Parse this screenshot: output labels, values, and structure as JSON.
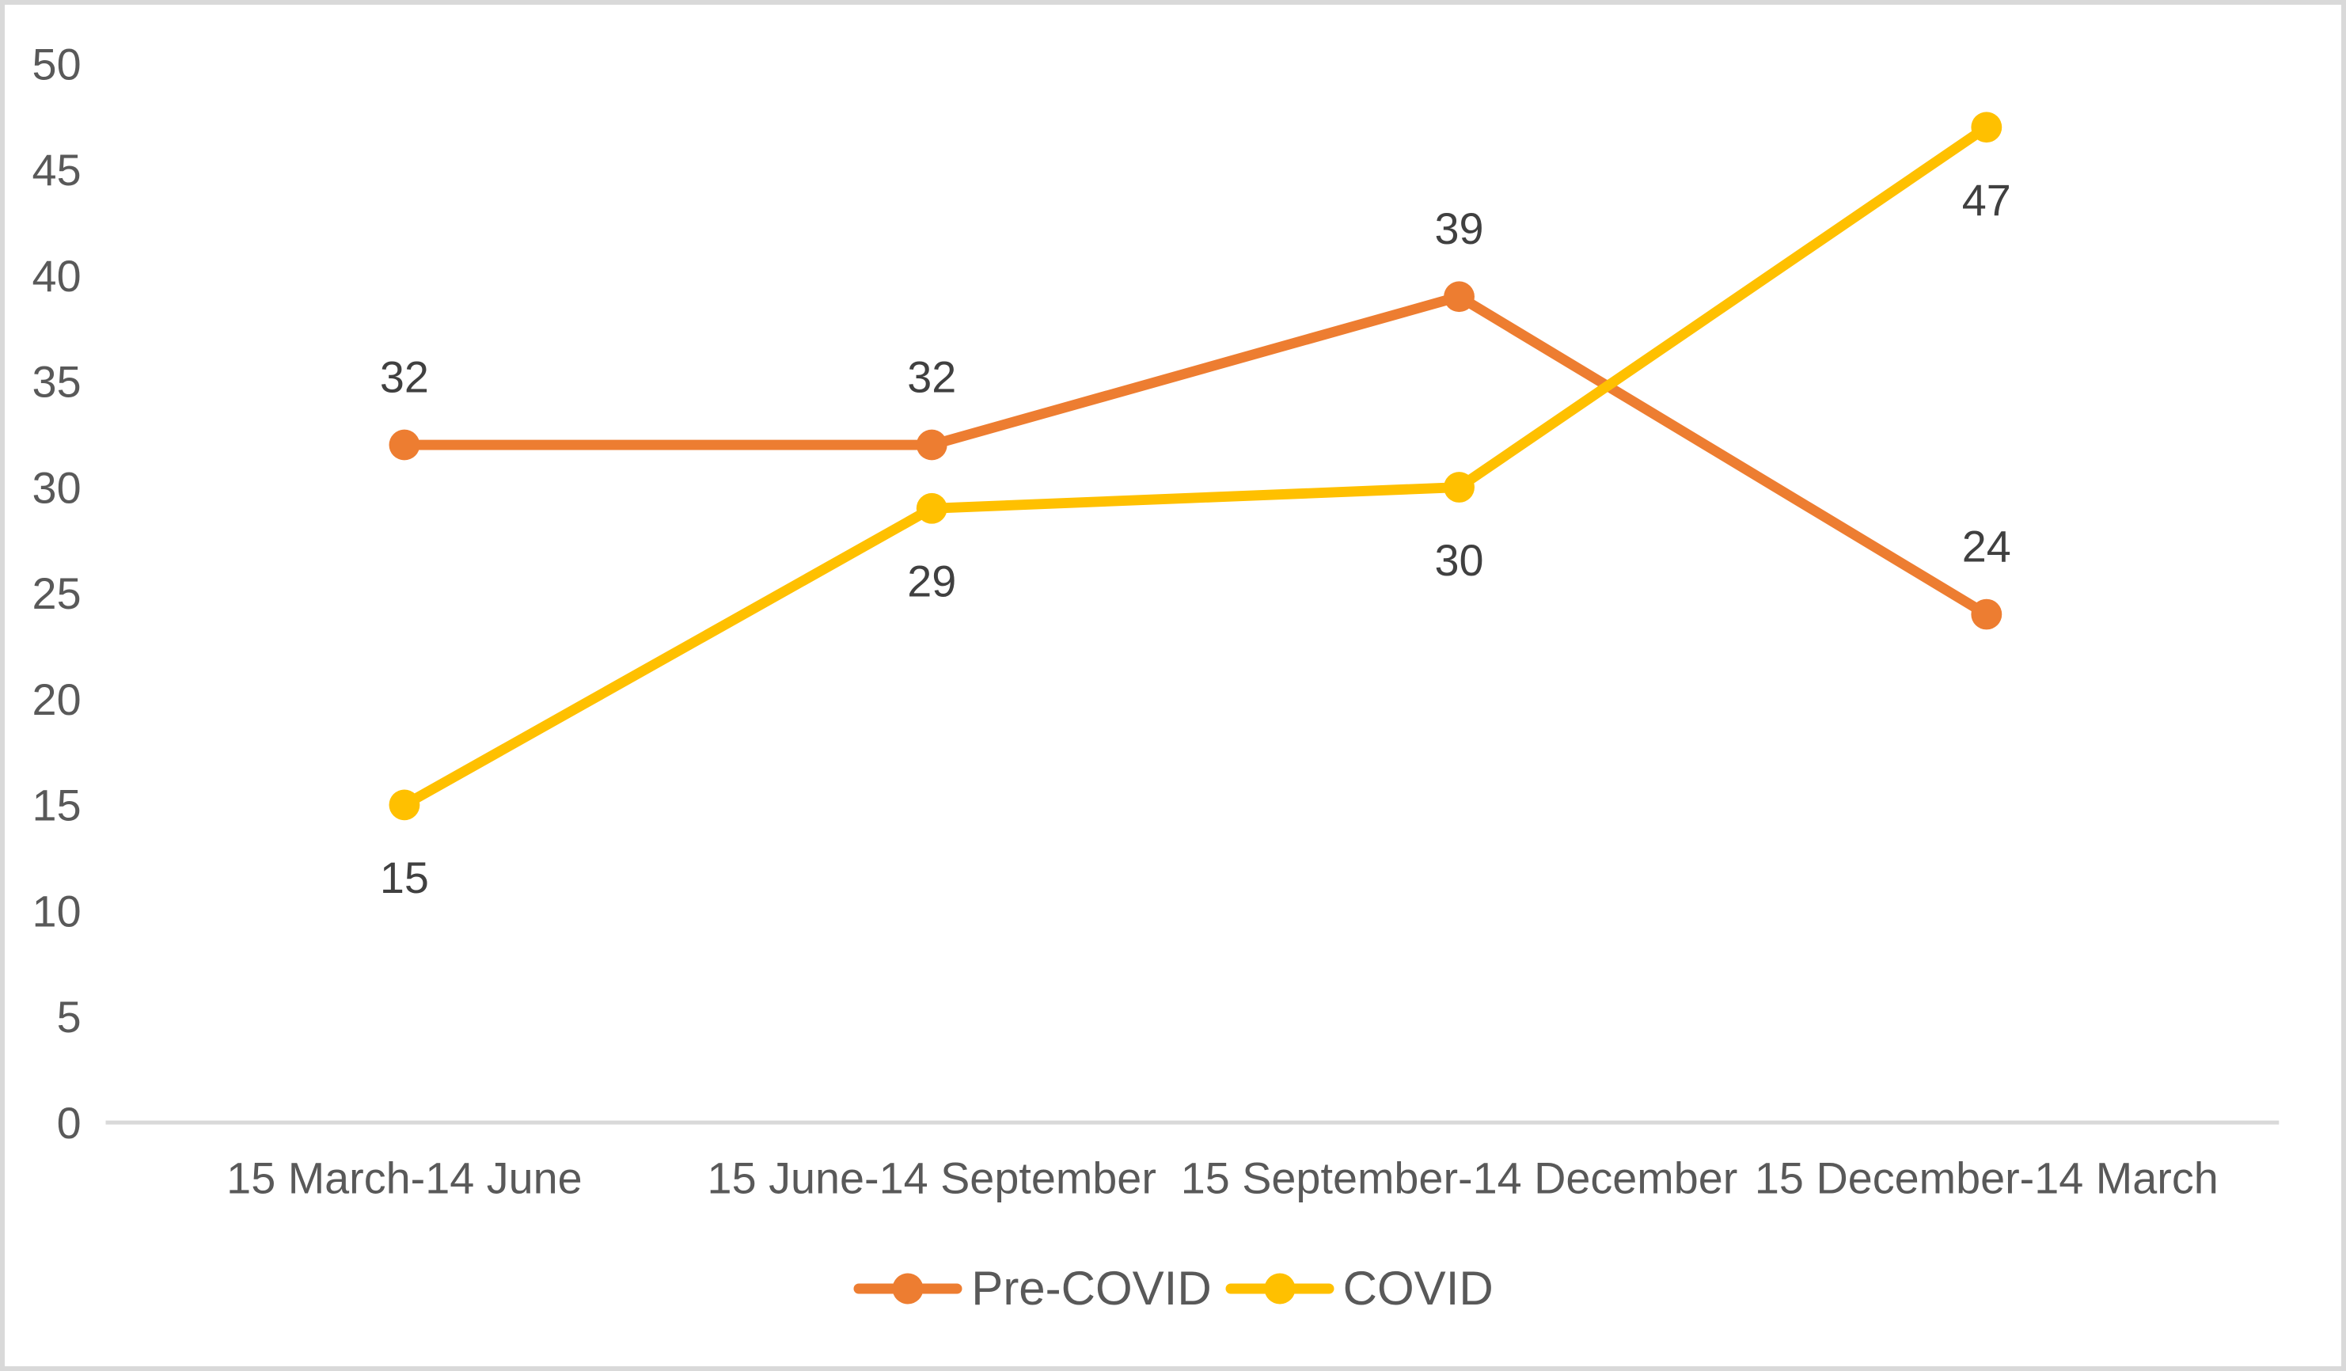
{
  "chart_data": {
    "type": "line",
    "title": "",
    "xlabel": "",
    "ylabel": "",
    "categories": [
      "15 March-14 June",
      "15 June-14 September",
      "15 September-14 December",
      "15 December-14 March"
    ],
    "series": [
      {
        "name": "Pre-COVID",
        "values": [
          32,
          32,
          39,
          24
        ],
        "color": "#ED7D31",
        "label_position": "above"
      },
      {
        "name": "COVID",
        "values": [
          15,
          29,
          30,
          47
        ],
        "color": "#FFC000",
        "label_position": "below"
      }
    ],
    "ylim": [
      0,
      50
    ],
    "ytick_step": 5,
    "yticks": [
      0,
      5,
      10,
      15,
      20,
      25,
      30,
      35,
      40,
      45,
      50
    ],
    "grid": false,
    "legend_position": "bottom",
    "marker": "circle",
    "colors": {
      "axis_text": "#595959",
      "data_label_text": "#404040",
      "axis_line": "#D9D9D9",
      "legend_text": "#595959",
      "background": "#FFFFFF",
      "frame_border": "#D9D9D9"
    }
  }
}
